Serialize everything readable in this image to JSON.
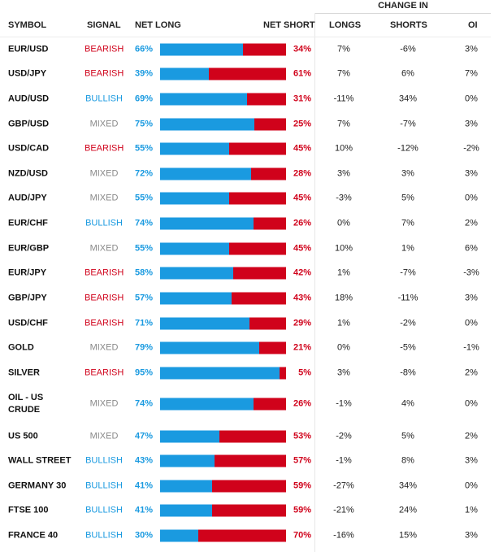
{
  "header": {
    "change_in": "CHANGE IN",
    "symbol": "SYMBOL",
    "signal": "SIGNAL",
    "net_long": "NET LONG",
    "net_short": "NET SHORT",
    "longs": "LONGS",
    "shorts": "SHORTS",
    "oi": "OI"
  },
  "colors": {
    "long": "#1a9ae0",
    "short": "#d0021b",
    "mixed": "#888888"
  },
  "rows": [
    {
      "symbol": "EUR/USD",
      "signal": "BEARISH",
      "net_long": "66%",
      "long_fraction": 66,
      "net_short": "34%",
      "longs": "7%",
      "shorts": "-6%",
      "oi": "3%"
    },
    {
      "symbol": "USD/JPY",
      "signal": "BEARISH",
      "net_long": "39%",
      "long_fraction": 39,
      "net_short": "61%",
      "longs": "7%",
      "shorts": "6%",
      "oi": "7%"
    },
    {
      "symbol": "AUD/USD",
      "signal": "BULLISH",
      "net_long": "69%",
      "long_fraction": 69,
      "net_short": "31%",
      "longs": "-11%",
      "shorts": "34%",
      "oi": "0%"
    },
    {
      "symbol": "GBP/USD",
      "signal": "MIXED",
      "net_long": "75%",
      "long_fraction": 75,
      "net_short": "25%",
      "longs": "7%",
      "shorts": "-7%",
      "oi": "3%"
    },
    {
      "symbol": "USD/CAD",
      "signal": "BEARISH",
      "net_long": "55%",
      "long_fraction": 55,
      "net_short": "45%",
      "longs": "10%",
      "shorts": "-12%",
      "oi": "-2%"
    },
    {
      "symbol": "NZD/USD",
      "signal": "MIXED",
      "net_long": "72%",
      "long_fraction": 72,
      "net_short": "28%",
      "longs": "3%",
      "shorts": "3%",
      "oi": "3%"
    },
    {
      "symbol": "AUD/JPY",
      "signal": "MIXED",
      "net_long": "55%",
      "long_fraction": 55,
      "net_short": "45%",
      "longs": "-3%",
      "shorts": "5%",
      "oi": "0%"
    },
    {
      "symbol": "EUR/CHF",
      "signal": "BULLISH",
      "net_long": "74%",
      "long_fraction": 74,
      "net_short": "26%",
      "longs": "0%",
      "shorts": "7%",
      "oi": "2%"
    },
    {
      "symbol": "EUR/GBP",
      "signal": "MIXED",
      "net_long": "55%",
      "long_fraction": 55,
      "net_short": "45%",
      "longs": "10%",
      "shorts": "1%",
      "oi": "6%"
    },
    {
      "symbol": "EUR/JPY",
      "signal": "BEARISH",
      "net_long": "58%",
      "long_fraction": 58,
      "net_short": "42%",
      "longs": "1%",
      "shorts": "-7%",
      "oi": "-3%"
    },
    {
      "symbol": "GBP/JPY",
      "signal": "BEARISH",
      "net_long": "57%",
      "long_fraction": 57,
      "net_short": "43%",
      "longs": "18%",
      "shorts": "-11%",
      "oi": "3%"
    },
    {
      "symbol": "USD/CHF",
      "signal": "BEARISH",
      "net_long": "71%",
      "long_fraction": 71,
      "net_short": "29%",
      "longs": "1%",
      "shorts": "-2%",
      "oi": "0%"
    },
    {
      "symbol": "GOLD",
      "signal": "MIXED",
      "net_long": "79%",
      "long_fraction": 79,
      "net_short": "21%",
      "longs": "0%",
      "shorts": "-5%",
      "oi": "-1%"
    },
    {
      "symbol": "SILVER",
      "signal": "BEARISH",
      "net_long": "95%",
      "long_fraction": 95,
      "net_short": "5%",
      "longs": "3%",
      "shorts": "-8%",
      "oi": "2%"
    },
    {
      "symbol": "OIL - US CRUDE",
      "signal": "MIXED",
      "net_long": "74%",
      "long_fraction": 74,
      "net_short": "26%",
      "longs": "-1%",
      "shorts": "4%",
      "oi": "0%"
    },
    {
      "symbol": "US 500",
      "signal": "MIXED",
      "net_long": "47%",
      "long_fraction": 47,
      "net_short": "53%",
      "longs": "-2%",
      "shorts": "5%",
      "oi": "2%"
    },
    {
      "symbol": "WALL STREET",
      "signal": "BULLISH",
      "net_long": "43%",
      "long_fraction": 43,
      "net_short": "57%",
      "longs": "-1%",
      "shorts": "8%",
      "oi": "3%"
    },
    {
      "symbol": "GERMANY 30",
      "signal": "BULLISH",
      "net_long": "41%",
      "long_fraction": 41,
      "net_short": "59%",
      "longs": "-27%",
      "shorts": "34%",
      "oi": "0%"
    },
    {
      "symbol": "FTSE 100",
      "signal": "BULLISH",
      "net_long": "41%",
      "long_fraction": 41,
      "net_short": "59%",
      "longs": "-21%",
      "shorts": "24%",
      "oi": "1%"
    },
    {
      "symbol": "FRANCE 40",
      "signal": "BULLISH",
      "net_long": "30%",
      "long_fraction": 30,
      "net_short": "70%",
      "longs": "-16%",
      "shorts": "15%",
      "oi": "3%"
    }
  ]
}
